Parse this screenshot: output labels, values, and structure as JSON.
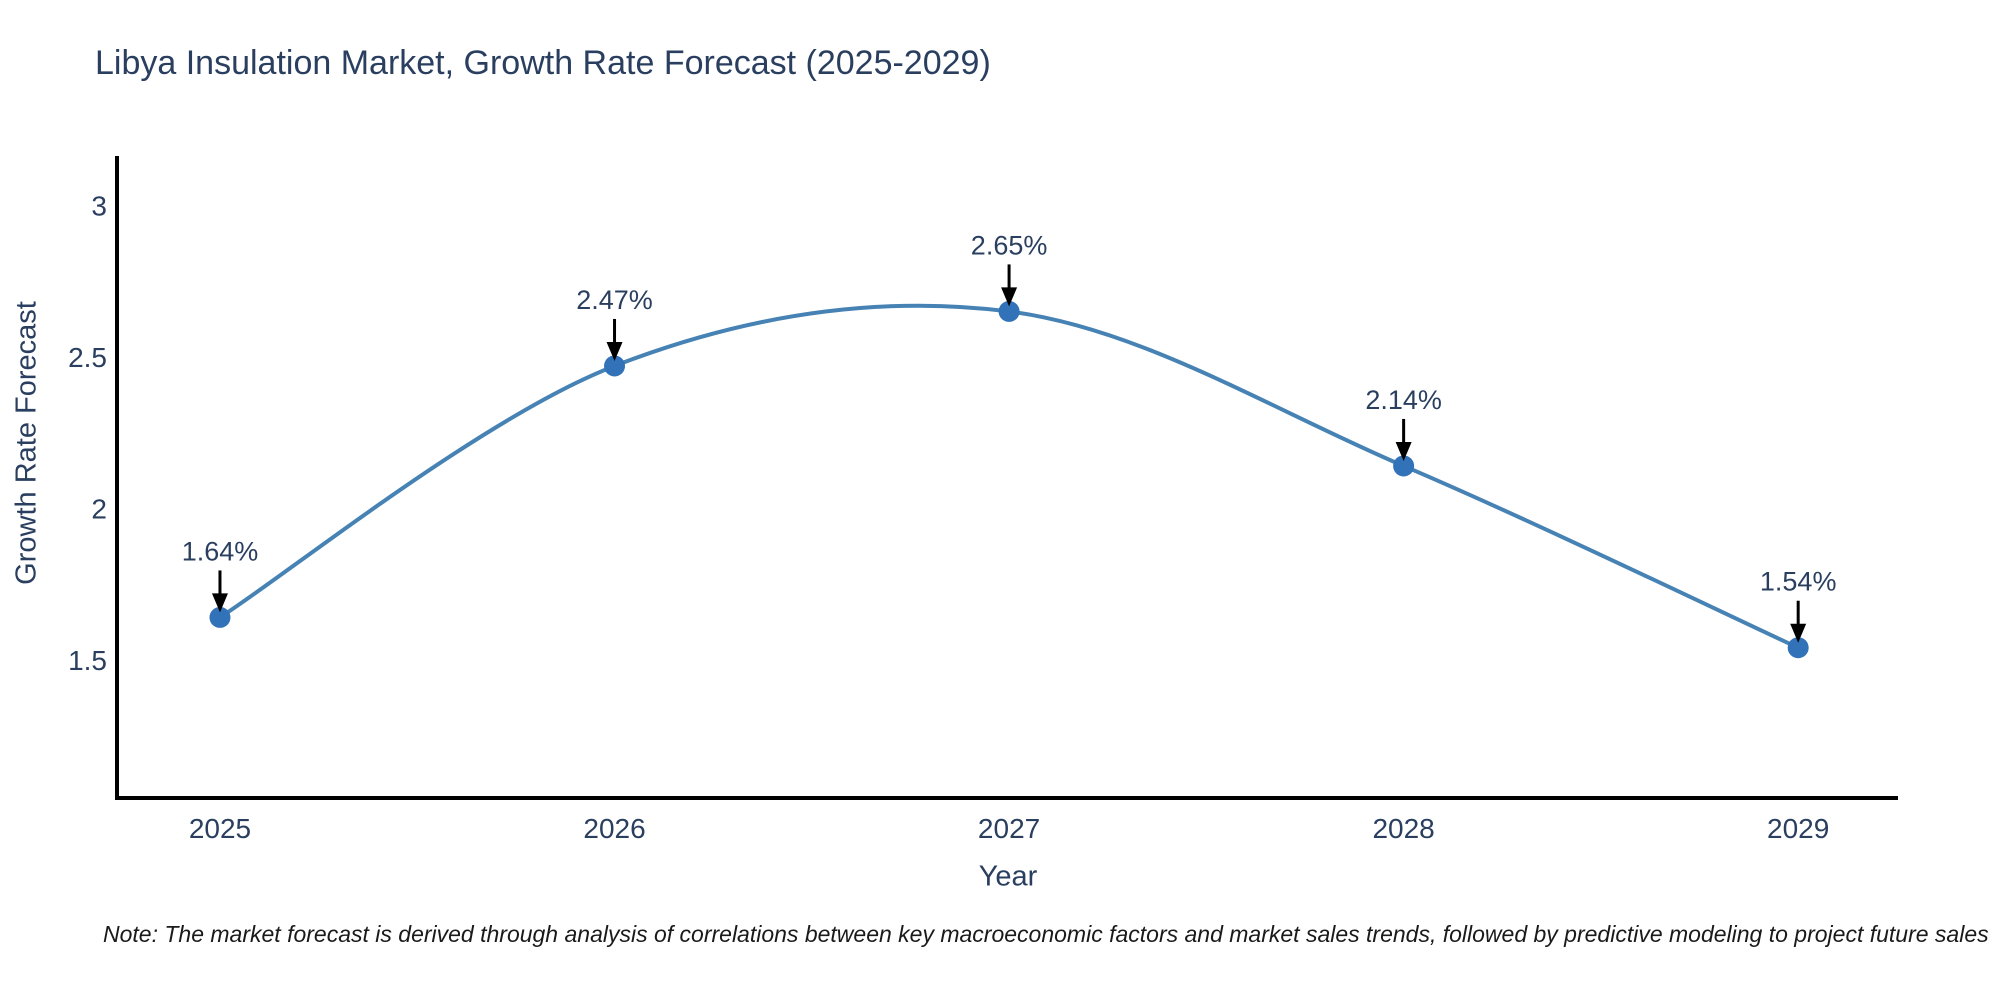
{
  "note": {
    "text": "Note: The market forecast is derived through analysis of correlations between key macroeconomic factors and market sales trends, followed by predictive modeling to project future sales"
  },
  "chart_data": {
    "type": "line",
    "title": "Libya Insulation Market, Growth Rate Forecast (2025-2029)",
    "xlabel": "Year",
    "ylabel": "Growth Rate Forecast",
    "x": [
      2025,
      2026,
      2027,
      2028,
      2029
    ],
    "values": [
      1.64,
      2.47,
      2.65,
      2.14,
      1.54
    ],
    "labels": [
      "1.64%",
      "2.47%",
      "2.65%",
      "2.14%",
      "1.54%"
    ],
    "xtick_labels": [
      "2025",
      "2026",
      "2027",
      "2028",
      "2029"
    ],
    "yticks": [
      1.5,
      2,
      2.5,
      3
    ],
    "ytick_labels": [
      "1.5",
      "2",
      "2.5",
      "3"
    ],
    "xlim": [
      2024.739,
      2029.253
    ],
    "ylim": [
      1.044,
      3.163
    ],
    "line_shape": "spline",
    "grid": false,
    "legend": "none",
    "colors": {
      "line": "#4682b4",
      "marker": "#3272b8",
      "axis": "#000000",
      "arrow": "#000000",
      "text": "#2a3f5f"
    }
  }
}
